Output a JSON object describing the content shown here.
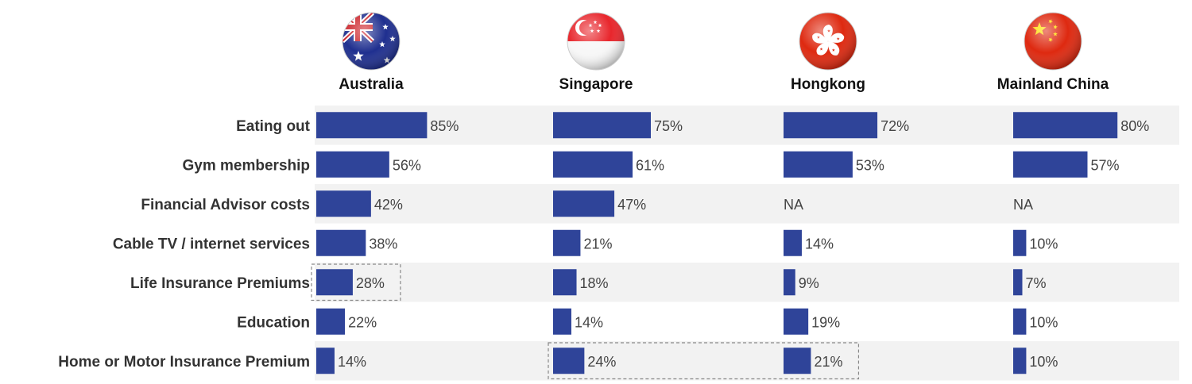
{
  "chart_data": {
    "type": "bar",
    "orientation": "horizontal",
    "categories": [
      "Eating out",
      "Gym membership",
      "Financial Advisor costs",
      "Cable TV / internet services",
      "Life Insurance Premiums",
      "Education",
      "Home or Motor Insurance Premium"
    ],
    "series": [
      {
        "name": "Australia",
        "flag": "australia-flag-icon",
        "values": [
          85,
          56,
          42,
          38,
          28,
          22,
          14
        ],
        "labels": [
          "85%",
          "56%",
          "42%",
          "38%",
          "28%",
          "22%",
          "14%"
        ]
      },
      {
        "name": "Singapore",
        "flag": "singapore-flag-icon",
        "values": [
          75,
          61,
          47,
          21,
          18,
          14,
          24
        ],
        "labels": [
          "75%",
          "61%",
          "47%",
          "21%",
          "18%",
          "14%",
          "24%"
        ]
      },
      {
        "name": "Hongkong",
        "flag": "hongkong-flag-icon",
        "values": [
          72,
          53,
          null,
          14,
          9,
          19,
          21
        ],
        "labels": [
          "72%",
          "53%",
          "NA",
          "14%",
          "9%",
          "19%",
          "21%"
        ]
      },
      {
        "name": "Mainland China",
        "flag": "china-flag-icon",
        "values": [
          80,
          57,
          null,
          10,
          7,
          10,
          10
        ],
        "labels": [
          "80%",
          "57%",
          "NA",
          "10%",
          "7%",
          "10%",
          "10%"
        ]
      }
    ],
    "highlights": [
      {
        "series": [
          0
        ],
        "category": 4
      },
      {
        "series": [
          1,
          2
        ],
        "category": 6
      }
    ],
    "bar_color": "#2f4499",
    "stripe_color": "#f2f2f2",
    "legend": "top",
    "grid": false
  }
}
